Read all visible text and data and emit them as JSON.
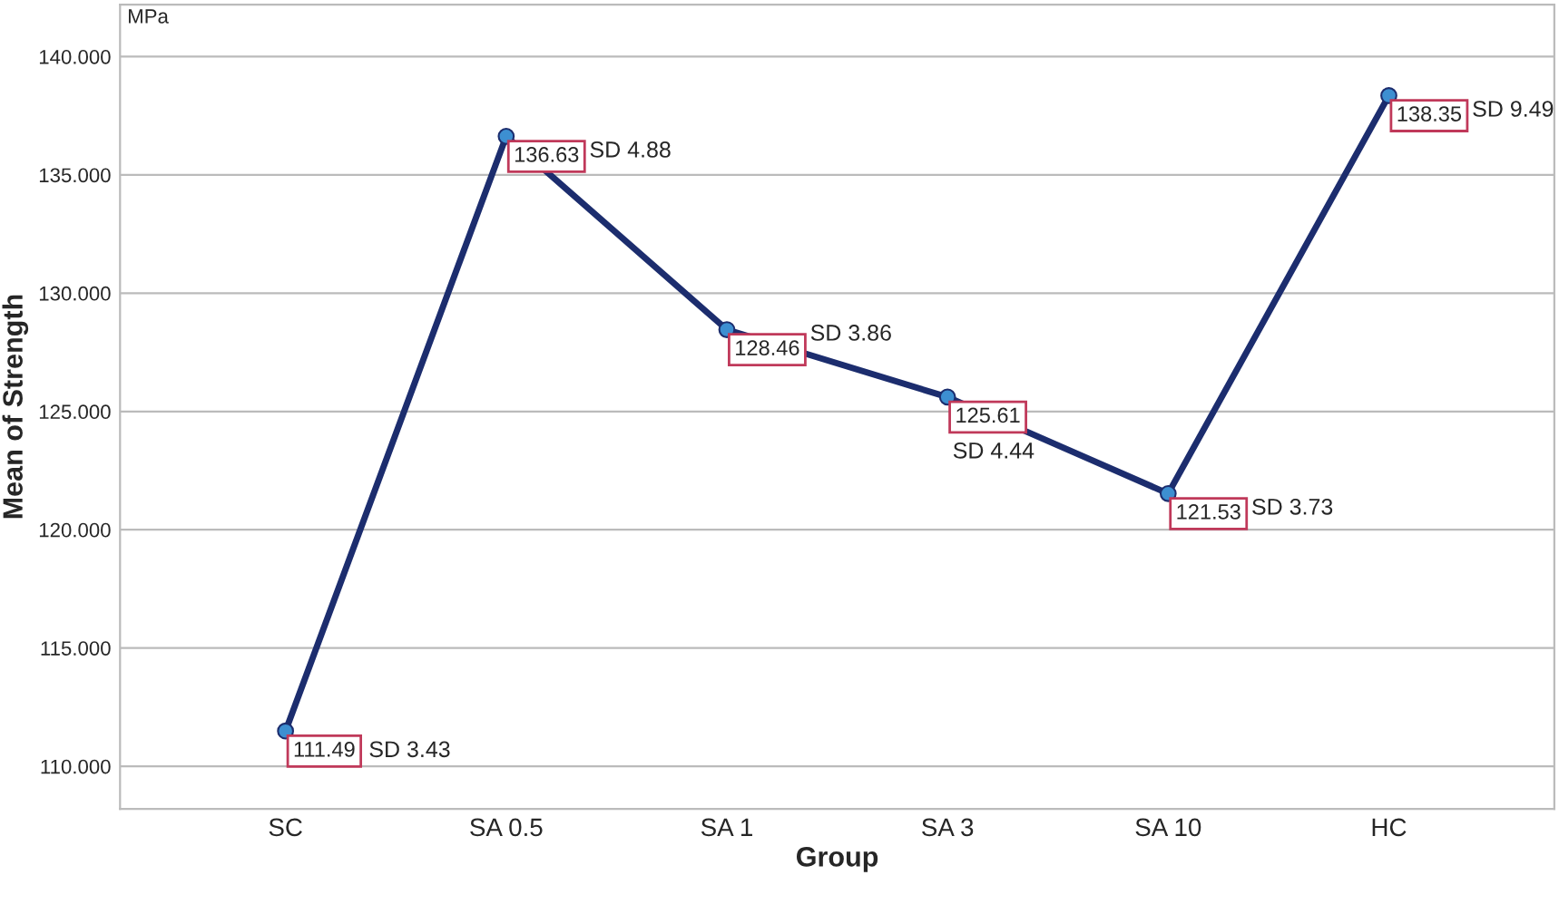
{
  "chart_data": {
    "type": "line",
    "xlabel": "Group",
    "ylabel": "Mean of Strength",
    "categories": [
      "SC",
      "SA 0.5",
      "SA 1",
      "SA 3",
      "SA 10",
      "HC"
    ],
    "series": [
      {
        "color": "#1c2d6e",
        "values": [
          111.49,
          136.63,
          128.46,
          125.61,
          121.53,
          138.35
        ]
      }
    ],
    "data_labels": true,
    "marker": "circle",
    "line_style": "solid",
    "grid": "y",
    "ylim": [
      108.2,
      142.2
    ],
    "yticks": [
      {
        "value": 110,
        "label": "110.000"
      },
      {
        "value": 115,
        "label": "115.000"
      },
      {
        "value": 120,
        "label": "120.000"
      },
      {
        "value": 125,
        "label": "125.000"
      },
      {
        "value": 130,
        "label": "130.000"
      },
      {
        "value": 135,
        "label": "135.000"
      },
      {
        "value": 140,
        "label": "140.000"
      }
    ],
    "annotations": [
      "MPa",
      "SD 3.43",
      "SD 4.88",
      "SD 3.86",
      "SD 4.44",
      "SD 3.73",
      "SD 9.49"
    ]
  }
}
